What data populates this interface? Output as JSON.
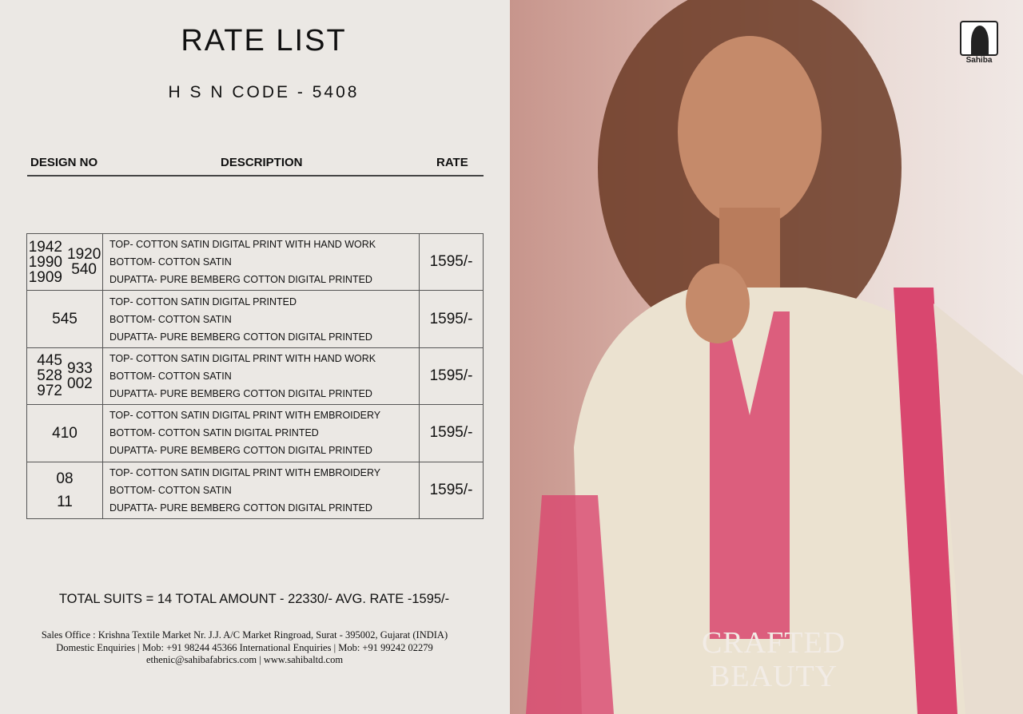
{
  "title": "RATE LIST",
  "hsn": "H S N CODE - 5408",
  "headers": {
    "design": "DESIGN NO",
    "description": "DESCRIPTION",
    "rate": "RATE"
  },
  "rows": [
    {
      "designs_left": [
        "1942",
        "1990",
        "1909"
      ],
      "designs_right": [
        "1920",
        "540"
      ],
      "lines": [
        "TOP- COTTON SATIN DIGITAL PRINT WITH HAND WORK",
        "BOTTOM- COTTON SATIN",
        "DUPATTA- PURE BEMBERG COTTON DIGITAL PRINTED"
      ],
      "rate": "1595/-"
    },
    {
      "designs_left": [
        "545"
      ],
      "designs_right": [],
      "lines": [
        "TOP- COTTON SATIN DIGITAL PRINTED",
        "BOTTOM- COTTON SATIN",
        "DUPATTA- PURE BEMBERG COTTON DIGITAL PRINTED"
      ],
      "rate": "1595/-"
    },
    {
      "designs_left": [
        "445",
        "528",
        "972"
      ],
      "designs_right": [
        "933",
        "002"
      ],
      "lines": [
        "TOP- COTTON SATIN DIGITAL PRINT WITH HAND WORK",
        "BOTTOM- COTTON SATIN",
        "DUPATTA- PURE BEMBERG COTTON DIGITAL PRINTED"
      ],
      "rate": "1595/-"
    },
    {
      "designs_left": [
        "410"
      ],
      "designs_right": [],
      "lines": [
        "TOP- COTTON SATIN DIGITAL PRINT WITH EMBROIDERY",
        "BOTTOM- COTTON SATIN DIGITAL PRINTED",
        "DUPATTA- PURE BEMBERG COTTON DIGITAL PRINTED"
      ],
      "rate": "1595/-"
    },
    {
      "designs_left": [
        "08",
        "11"
      ],
      "designs_right": [],
      "lines": [
        "TOP- COTTON SATIN DIGITAL PRINT WITH EMBROIDERY",
        "BOTTOM- COTTON SATIN",
        "DUPATTA- PURE BEMBERG COTTON DIGITAL PRINTED"
      ],
      "rate": "1595/-"
    }
  ],
  "total": "TOTAL SUITS = 14  TOTAL AMOUNT - 22330/-    AVG. RATE -1595/-",
  "footer": [
    "Sales Office : Krishna Textile Market Nr. J.J. A/C Market Ringroad, Surat  -  395002, Gujarat (INDIA)",
    "Domestic Enquiries | Mob: +91 98244 45366  International Enquiries | Mob: +91 99242 02279",
    "ethenic@sahibafabrics.com | www.sahibaltd.com"
  ],
  "brand": {
    "logo_text": "Sahiba",
    "tagline_1": "CRAFTED",
    "tagline_2": "BEAUTY"
  },
  "colors": {
    "background": "#ebe8e4",
    "accent_pink": "#d9476f",
    "kurta_cream": "#ebe2d0"
  }
}
